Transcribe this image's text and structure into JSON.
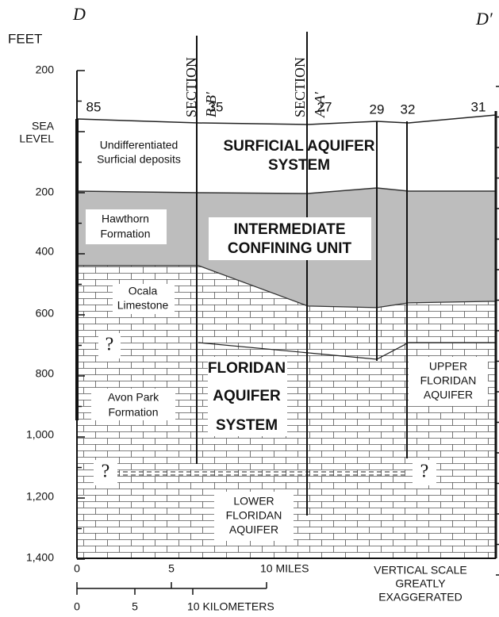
{
  "corner_left": "D",
  "corner_right": "D′",
  "axis_title": "FEET",
  "depth_labels": [
    "200",
    "200",
    "400",
    "600",
    "800",
    "1,000",
    "1,200",
    "1,400"
  ],
  "sea_level": [
    "SEA",
    "LEVEL"
  ],
  "wells": [
    "85",
    "35",
    "27",
    "29",
    "32",
    "31"
  ],
  "sections": [
    {
      "word": "SECTION",
      "name": "B-B′"
    },
    {
      "word": "SECTION",
      "name": "A-A′"
    }
  ],
  "units": {
    "surficial_deposits": [
      "Undifferentiated",
      "Surficial deposits"
    ],
    "surficial_system": [
      "SURFICIAL AQUIFER",
      "SYSTEM"
    ],
    "hawthorn": [
      "Hawthorn",
      "Formation"
    ],
    "intermediate": [
      "INTERMEDIATE",
      "CONFINING UNIT"
    ],
    "ocala": [
      "Ocala",
      "Limestone"
    ],
    "floridan": [
      "FLORIDAN",
      "AQUIFER",
      "SYSTEM"
    ],
    "avon_park": [
      "Avon Park",
      "Formation"
    ],
    "upper_floridan": [
      "UPPER",
      "FLORIDAN",
      "AQUIFER"
    ],
    "lower_floridan": [
      "LOWER",
      "FLORIDAN",
      "AQUIFER"
    ]
  },
  "question_mark": "?",
  "scale": {
    "miles": [
      "0",
      "5",
      "10 MILES"
    ],
    "kilometers": [
      "0",
      "5",
      "10 KILOMETERS"
    ],
    "note": [
      "VERTICAL SCALE",
      "GREATLY",
      "EXAGGERATED"
    ]
  }
}
